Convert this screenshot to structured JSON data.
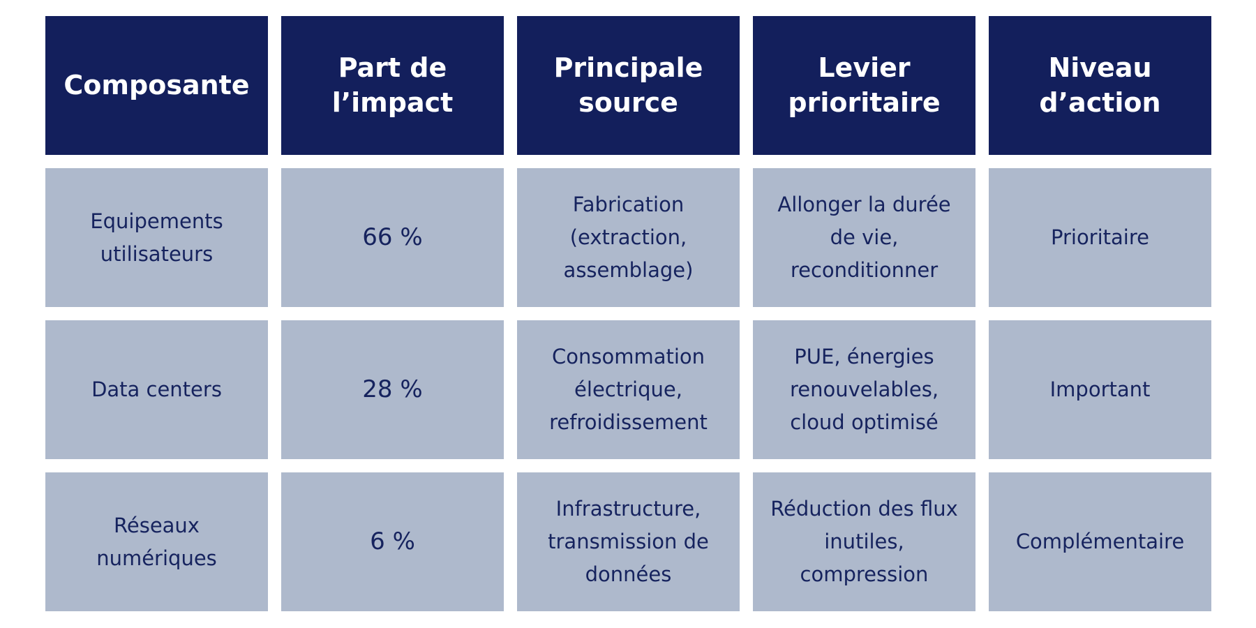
{
  "table": {
    "headers": [
      "Composante",
      "Part de\nl’impact",
      "Principale\nsource",
      "Levier\nprioritaire",
      "Niveau\nd’action"
    ],
    "rows": [
      {
        "composante": "Equipements\nutilisateurs",
        "part": "66 %",
        "source": "Fabrication\n(extraction,\nassemblage)",
        "levier": "Allonger la durée\nde vie,\nreconditionner",
        "niveau": "Prioritaire"
      },
      {
        "composante": "Data centers",
        "part": "28 %",
        "source": "Consommation\nélectrique,\nrefroidissement",
        "levier": "PUE, énergies\nrenouvelables,\ncloud optimisé",
        "niveau": "Important"
      },
      {
        "composante": "Réseaux\nnumériques",
        "part": "6 %",
        "source": "Infrastructure,\ntransmission de\ndonnées",
        "levier": "Réduction des flux\ninutiles,\ncompression",
        "niveau": "Complémentaire"
      }
    ]
  },
  "colors": {
    "header_bg": "#131f5c",
    "header_text": "#ffffff",
    "cell_bg": "#aeb9cc",
    "cell_text": "#16235e"
  }
}
